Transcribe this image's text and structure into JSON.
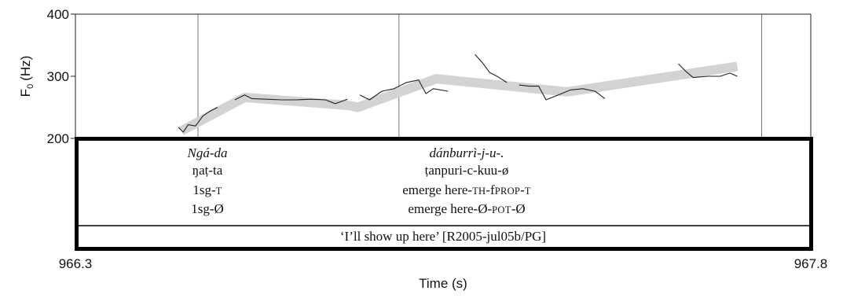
{
  "chart_data": {
    "type": "line",
    "title": "",
    "xlabel": "Time (s)",
    "ylabel": "F0 (Hz)",
    "ylabel_main": "F",
    "ylabel_sub": "0",
    "ylabel_unit": "(Hz)",
    "xlim": [
      966.3,
      967.8
    ],
    "ylim": [
      200,
      400
    ],
    "x_ticks": [
      "966.3",
      "967.8"
    ],
    "y_ticks": [
      {
        "value": 400,
        "label": "400"
      },
      {
        "value": 300,
        "label": "300"
      },
      {
        "value": 200,
        "label": "200"
      }
    ],
    "boundaries": [
      966.3,
      966.55,
      966.96,
      967.7,
      967.8
    ],
    "series": [
      {
        "kind": "stylized",
        "color": "#d3d3d3",
        "x": [
          966.516,
          966.645,
          966.858,
          966.876,
          967.036,
          967.303,
          967.65
        ],
        "y": [
          212,
          266,
          253,
          250,
          296,
          275,
          316
        ]
      },
      {
        "kind": "raw",
        "color": "#222222",
        "segments": [
          {
            "x": [
              966.51,
              966.52,
              966.53,
              966.545,
              966.56,
              966.575,
              966.59
            ],
            "y": [
              218,
              210,
              222,
              220,
              236,
              244,
              250
            ]
          },
          {
            "x": [
              966.625,
              966.645,
              966.66,
              966.69,
              966.72,
              966.75,
              966.78,
              966.81,
              966.83,
              966.855
            ],
            "y": [
              262,
              270,
              264,
              263,
              262,
              262,
              263,
              262,
              256,
              263
            ]
          },
          {
            "x": [
              966.88,
              966.9,
              966.925,
              966.95,
              966.975,
              967.0,
              967.015,
              967.03,
              967.06
            ],
            "y": [
              270,
              262,
              276,
              280,
              290,
              294,
              272,
              280,
              276
            ]
          },
          {
            "x": [
              967.115,
              967.13,
              967.145,
              967.16,
              967.18
            ],
            "y": [
              335,
              322,
              306,
              300,
              290
            ]
          },
          {
            "x": [
              967.205,
              967.225,
              967.245,
              967.26,
              967.285,
              967.31,
              967.335,
              967.36,
              967.38
            ],
            "y": [
              286,
              284,
              284,
              262,
              270,
              278,
              280,
              276,
              264
            ]
          },
          {
            "x": [
              967.53,
              967.545,
              967.56,
              967.59,
              967.615,
              967.635,
              967.65
            ],
            "y": [
              320,
              308,
              298,
              300,
              300,
              305,
              300
            ]
          }
        ]
      }
    ]
  },
  "interlinear": {
    "columns": [
      {
        "word": "Ngá-da",
        "phonemic": "ŋaṭ-ta",
        "gloss1": [
          {
            "t": "1sg-",
            "sc": false
          },
          {
            "t": "t",
            "sc": true
          }
        ],
        "gloss2": [
          {
            "t": "1sg-Ø",
            "sc": false
          }
        ]
      },
      {
        "word": "dánburrì-j-u-.",
        "phonemic": "ṭanpuri-c-kuu-ø",
        "gloss1": [
          {
            "t": "emerge here-",
            "sc": false
          },
          {
            "t": "th",
            "sc": true
          },
          {
            "t": "-f",
            "sc": false
          },
          {
            "t": "prop",
            "sc": true
          },
          {
            "t": "-",
            "sc": false
          },
          {
            "t": "t",
            "sc": true
          }
        ],
        "gloss2": [
          {
            "t": "emerge here-Ø-",
            "sc": false
          },
          {
            "t": "pot",
            "sc": true
          },
          {
            "t": "-Ø",
            "sc": false
          }
        ]
      }
    ],
    "translation": "‘I’ll show up here’ [R2005-jul05b/PG]"
  }
}
